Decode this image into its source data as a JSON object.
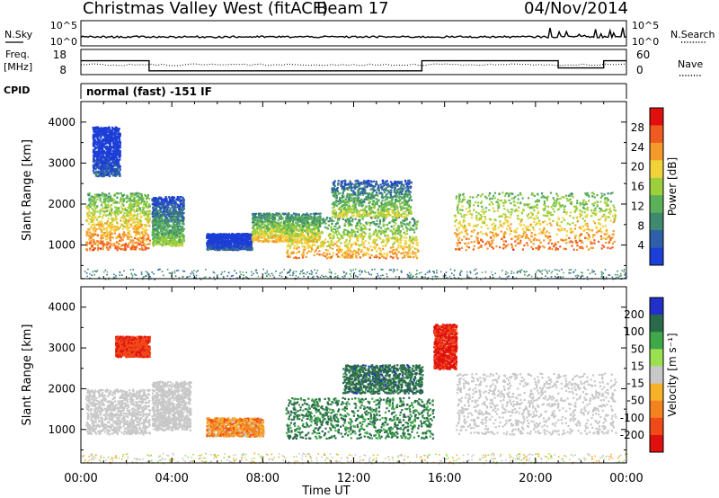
{
  "header": {
    "station": "Christmas Valley West (fitACF)",
    "beam": "Beam 17",
    "date": "04/Nov/2014"
  },
  "top_panels": {
    "nsky": {
      "left_label": "N.Sky",
      "right_label": "N.Search",
      "ticks_left": [
        "10^5",
        "10^0"
      ],
      "ticks_right": [
        "10^5",
        "10^0"
      ]
    },
    "freq": {
      "left_label": "Freq.",
      "left_unit": "[MHz]",
      "right_label": "Nave",
      "ticks_left": [
        "18",
        "8"
      ],
      "ticks_right": [
        "60",
        "0"
      ]
    },
    "cpid": {
      "label": "CPID",
      "text": "normal (fast) -151 IF"
    }
  },
  "chart_data": [
    {
      "type": "heatmap",
      "name": "power",
      "ylabel": "Slant Range [km]",
      "xlabel": "Time UT",
      "x_ticks": [
        "00:00",
        "04:00",
        "08:00",
        "12:00",
        "16:00",
        "20:00",
        "00:00"
      ],
      "y_ticks": [
        1000,
        2000,
        3000,
        4000
      ],
      "ylim": [
        180,
        4500
      ],
      "xlim_hours": [
        0,
        24
      ],
      "colorbar": {
        "label": "Power [dB]",
        "ticks": [
          4,
          8,
          12,
          16,
          20,
          24,
          28
        ],
        "range": [
          0,
          32
        ],
        "colors": [
          "#1c3ed6",
          "#2e5fa8",
          "#3f8a6e",
          "#5bb05a",
          "#9ccf3c",
          "#f2d23a",
          "#f39a2a",
          "#ef5a20",
          "#e01010"
        ]
      },
      "echo_bands": [
        {
          "t": [
            0.2,
            3.0
          ],
          "r": [
            900,
            2300
          ],
          "level": 26
        },
        {
          "t": [
            3.1,
            4.5
          ],
          "r": [
            1000,
            2200
          ],
          "level": 16
        },
        {
          "t": [
            5.5,
            7.5
          ],
          "r": [
            900,
            1300
          ],
          "level": 6
        },
        {
          "t": [
            7.5,
            10.5
          ],
          "r": [
            1100,
            1800
          ],
          "level": 22
        },
        {
          "t": [
            9.0,
            14.8
          ],
          "r": [
            700,
            1700
          ],
          "level": 24
        },
        {
          "t": [
            11.0,
            14.5
          ],
          "r": [
            1700,
            2600
          ],
          "level": 18
        },
        {
          "t": [
            16.4,
            23.5
          ],
          "r": [
            900,
            2300
          ],
          "level": 26
        },
        {
          "t": [
            0.5,
            1.7
          ],
          "r": [
            2700,
            3900
          ],
          "level": 6
        }
      ]
    },
    {
      "type": "heatmap",
      "name": "velocity",
      "ylabel": "Slant Range [km]",
      "xlabel": "Time UT",
      "x_ticks": [
        "00:00",
        "04:00",
        "08:00",
        "12:00",
        "16:00",
        "20:00",
        "00:00"
      ],
      "y_ticks": [
        1000,
        2000,
        3000,
        4000
      ],
      "ylim": [
        180,
        4500
      ],
      "xlim_hours": [
        0,
        24
      ],
      "colorbar": {
        "label": "Velocity [m s⁻¹]",
        "ticks": [
          200,
          100,
          50,
          15,
          -15,
          -50,
          -100,
          -200
        ],
        "colors": [
          "#2030c8",
          "#2a6a4a",
          "#3fa84a",
          "#9be050",
          "#c8c8c8",
          "#f7b02a",
          "#f58220",
          "#f04a18",
          "#e01010"
        ]
      },
      "echo_bands": [
        {
          "t": [
            0.2,
            3.0
          ],
          "r": [
            900,
            2000
          ],
          "level": 0
        },
        {
          "t": [
            3.1,
            4.8
          ],
          "r": [
            1000,
            2200
          ],
          "level": 0
        },
        {
          "t": [
            5.5,
            8.0
          ],
          "r": [
            850,
            1300
          ],
          "level": -60
        },
        {
          "t": [
            9.0,
            15.5
          ],
          "r": [
            800,
            1800
          ],
          "level": 110
        },
        {
          "t": [
            11.5,
            15.0
          ],
          "r": [
            1900,
            2600
          ],
          "level": 150
        },
        {
          "t": [
            15.5,
            16.5
          ],
          "r": [
            2500,
            3600
          ],
          "level": -220
        },
        {
          "t": [
            16.5,
            23.5
          ],
          "r": [
            900,
            2400
          ],
          "level": 0
        },
        {
          "t": [
            1.5,
            3.0
          ],
          "r": [
            2800,
            3300
          ],
          "level": -180
        }
      ]
    }
  ]
}
